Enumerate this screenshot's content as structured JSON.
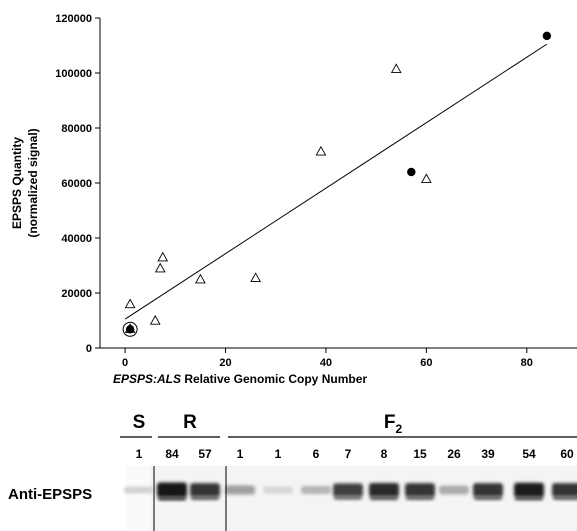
{
  "chart_data": {
    "type": "scatter",
    "xlabel_italic": "EPSPS:ALS",
    "xlabel_rest": " Relative Genomic Copy Number",
    "ylabel_line1": "EPSPS Quantity",
    "ylabel_line2": "(normalized signal)",
    "xlim": [
      -5,
      90
    ],
    "ylim": [
      0,
      120000
    ],
    "xticks": [
      0,
      20,
      40,
      60,
      80
    ],
    "yticks": [
      0,
      20000,
      40000,
      60000,
      80000,
      100000,
      120000
    ],
    "series": [
      {
        "marker": "open-triangle",
        "points": [
          {
            "x": 1,
            "y": 16000
          },
          {
            "x": 1,
            "y": 7000
          },
          {
            "x": 6,
            "y": 10000
          },
          {
            "x": 7,
            "y": 29000
          },
          {
            "x": 7.5,
            "y": 33000
          },
          {
            "x": 15,
            "y": 25000
          },
          {
            "x": 26,
            "y": 25500
          },
          {
            "x": 39,
            "y": 71500
          },
          {
            "x": 54,
            "y": 101500
          },
          {
            "x": 60,
            "y": 61500
          }
        ]
      },
      {
        "marker": "filled-circle",
        "points": [
          {
            "x": 1,
            "y": 6800
          },
          {
            "x": 57,
            "y": 64000
          },
          {
            "x": 84,
            "y": 113500
          }
        ]
      }
    ],
    "regression": {
      "x0": 0,
      "y0": 10500,
      "x1": 84,
      "y1": 110500
    },
    "circled_point": {
      "x": 1,
      "y": 6800
    }
  },
  "blot": {
    "groups": [
      {
        "label": "S"
      },
      {
        "label": "R"
      },
      {
        "label": "F",
        "subscript": "2"
      }
    ],
    "lanes": [
      {
        "label": "1",
        "intensity": 0.12
      },
      {
        "label": "84",
        "intensity": 1.0
      },
      {
        "label": "57",
        "intensity": 0.85
      },
      {
        "label": "1",
        "intensity": 0.35
      },
      {
        "label": "1",
        "intensity": 0.1
      },
      {
        "label": "6",
        "intensity": 0.25
      },
      {
        "label": "7",
        "intensity": 0.8
      },
      {
        "label": "8",
        "intensity": 0.9
      },
      {
        "label": "15",
        "intensity": 0.85
      },
      {
        "label": "26",
        "intensity": 0.3
      },
      {
        "label": "39",
        "intensity": 0.85
      },
      {
        "label": "54",
        "intensity": 0.95
      },
      {
        "label": "60",
        "intensity": 0.85
      }
    ],
    "antibody_label": "Anti-EPSPS"
  }
}
